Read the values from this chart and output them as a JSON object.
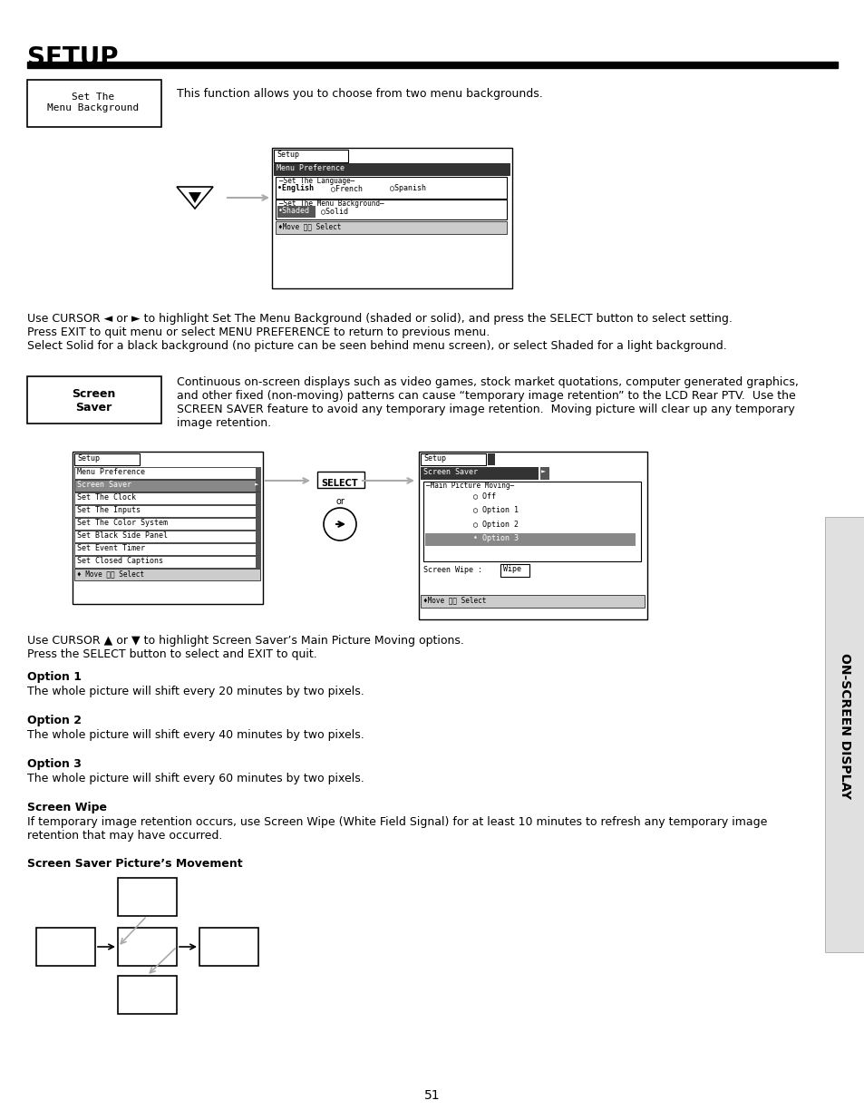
{
  "title": "SETUP",
  "page_number": "51",
  "bg_color": "#ffffff",
  "sidebar_text": "ON-SCREEN DISPLAY",
  "section1_label": "Set The\nMenu Background",
  "section1_desc": "This function allows you to choose from two menu backgrounds.",
  "cursor_desc1": "Use CURSOR ◄ or ► to highlight Set The Menu Background (shaded or solid), and press the SELECT button to select setting.\nPress EXIT to quit menu or select MENU PREFERENCE to return to previous menu.\nSelect Solid for a black background (no picture can be seen behind menu screen), or select Shaded for a light background.",
  "section2_label": "Screen\nSaver",
  "section2_desc": "Continuous on-screen displays such as video games, stock market quotations, computer generated graphics,\nand other fixed (non-moving) patterns can cause “temporary image retention” to the LCD Rear PTV.  Use the\nSCREEN SAVER feature to avoid any temporary image retention.  Moving picture will clear up any temporary\nimage retention.",
  "cursor_desc2": "Use CURSOR ▲ or ▼ to highlight Screen Saver’s Main Picture Moving options.\nPress the SELECT button to select and EXIT to quit.",
  "option1_title": "Option 1",
  "option1_desc": "The whole picture will shift every 20 minutes by two pixels.",
  "option2_title": "Option 2",
  "option2_desc": "The whole picture will shift every 40 minutes by two pixels.",
  "option3_title": "Option 3",
  "option3_desc": "The whole picture will shift every 60 minutes by two pixels.",
  "screenwipe_title": "Screen Wipe",
  "screenwipe_desc": "If temporary image retention occurs, use Screen Wipe (White Field Signal) for at least 10 minutes to refresh any temporary image\nretention that may have occurred.",
  "movement_title": "Screen Saver Picture’s Movement"
}
